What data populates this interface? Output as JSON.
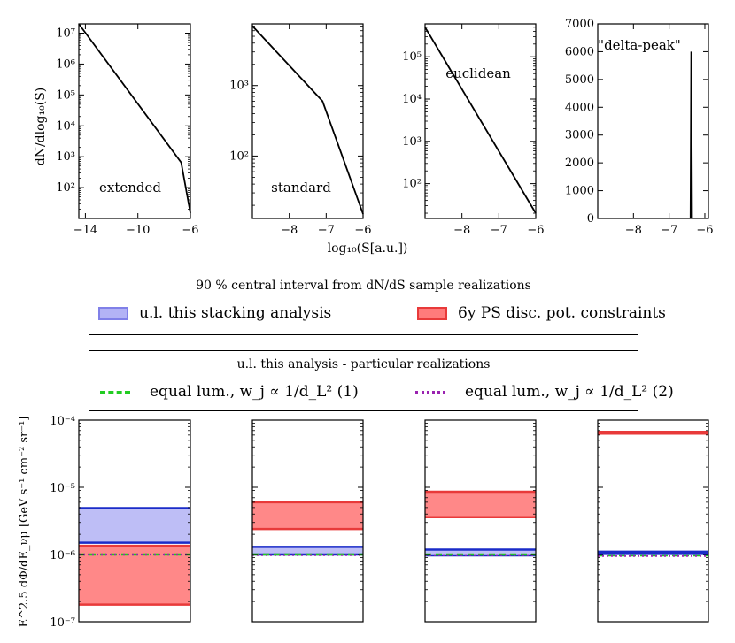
{
  "colors": {
    "ul_fill": "#b3b3f5",
    "ul_edge": "#1a2cc8",
    "ps_fill": "#ff7b7b",
    "ps_edge": "#e83a3a",
    "line_green": "#22cc22",
    "line_purple": "#9a22b0"
  },
  "legend1": {
    "title": "90 % central interval from dN/dS sample realizations",
    "item_ul": "u.l. this stacking analysis",
    "item_ps": "6y PS disc. pot. constraints"
  },
  "legend2": {
    "title": "u.l. this analysis - particular realizations",
    "item1": "equal lum., w_j ∝ 1/d_L² (1)",
    "item2": "equal lum., w_j ∝ 1/d_L² (2)"
  },
  "chart_data": [
    {
      "type": "line",
      "name": "extended",
      "label": "extended",
      "yscale": "log",
      "xlim": [
        -14.5,
        -6
      ],
      "ylim": [
        10,
        20000000
      ],
      "xticks": [
        -14,
        -10,
        -6
      ],
      "xtick_labels": [
        "−14",
        "−10",
        "−6"
      ],
      "yticks": [
        100,
        1000,
        10000,
        100000,
        1000000,
        10000000
      ],
      "ytick_labels": [
        "10²",
        "10³",
        "10⁴",
        "10⁵",
        "10⁶",
        "10⁷"
      ],
      "ylabel": "dN/dlog₁₀(S)",
      "x": [
        -14.5,
        -6.7,
        -6.0
      ],
      "y": [
        20000000,
        650,
        15
      ]
    },
    {
      "type": "line",
      "name": "standard",
      "label": "standard",
      "yscale": "log",
      "xlim": [
        -9,
        -6
      ],
      "ylim": [
        13,
        7500
      ],
      "xticks": [
        -8,
        -7,
        -6
      ],
      "xtick_labels": [
        "−8",
        "−7",
        "−6"
      ],
      "yticks": [
        100,
        1000
      ],
      "ytick_labels": [
        "10²",
        "10³"
      ],
      "x": [
        -9,
        -7.1,
        -6.0
      ],
      "y": [
        7000,
        600,
        15
      ]
    },
    {
      "type": "line",
      "name": "euclidean",
      "label": "euclidean",
      "yscale": "log",
      "xlim": [
        -9,
        -6
      ],
      "ylim": [
        15,
        600000
      ],
      "xticks": [
        -8,
        -7,
        -6
      ],
      "xtick_labels": [
        "−8",
        "−7",
        "−6"
      ],
      "yticks": [
        100,
        1000,
        10000,
        100000
      ],
      "ytick_labels": [
        "10²",
        "10³",
        "10⁴",
        "10⁵"
      ],
      "xlabel": "log₁₀(S[a.u.])",
      "x": [
        -9,
        -6.0
      ],
      "y": [
        500000,
        20
      ]
    },
    {
      "type": "line",
      "name": "delta-peak",
      "label": "\"delta-peak\"",
      "yscale": "linear",
      "xlim": [
        -9,
        -5.9
      ],
      "ylim": [
        0,
        7000
      ],
      "xticks": [
        -8,
        -7,
        -6
      ],
      "xtick_labels": [
        "−8",
        "−7",
        "−6"
      ],
      "yticks": [
        0,
        1000,
        2000,
        3000,
        4000,
        5000,
        6000,
        7000
      ],
      "ytick_labels": [
        "0",
        "1000",
        "2000",
        "3000",
        "4000",
        "5000",
        "6000",
        "7000"
      ],
      "x": [
        -6.4,
        -6.38,
        -6.36
      ],
      "y": [
        0,
        6000,
        0
      ]
    },
    {
      "type": "area",
      "name": "extended-bands",
      "yscale": "log",
      "ylim": [
        1e-07,
        0.0001
      ],
      "yticks": [
        1e-07,
        1e-06,
        1e-05,
        0.0001
      ],
      "ytick_labels": [
        "10⁻⁷",
        "10⁻⁶",
        "10⁻⁵",
        "10⁻⁴"
      ],
      "ylabel": "E^2.5 dΦ/dE_νμ [GeV s⁻¹ cm⁻² sr⁻¹]",
      "ul_band": [
        1.5e-06,
        4.9e-06
      ],
      "ps_band": [
        1.8e-07,
        1.35e-06
      ],
      "line1": 1e-06,
      "line2": 1e-06
    },
    {
      "type": "area",
      "name": "standard-bands",
      "yscale": "log",
      "ylim": [
        1e-07,
        0.0001
      ],
      "ul_band": [
        1e-06,
        1.3e-06
      ],
      "ps_band": [
        2.4e-06,
        6e-06
      ],
      "line1": 1e-06,
      "line2": 9.8e-07
    },
    {
      "type": "area",
      "name": "euclidean-bands",
      "yscale": "log",
      "ylim": [
        1e-07,
        0.0001
      ],
      "ul_band": [
        9.7e-07,
        1.18e-06
      ],
      "ps_band": [
        3.6e-06,
        8.6e-06
      ],
      "line1": 1e-06,
      "line2": 9.8e-07
    },
    {
      "type": "area",
      "name": "delta-peak-bands",
      "yscale": "log",
      "ylim": [
        1e-07,
        0.0001
      ],
      "ul_band": [
        1.05e-06,
        1.1e-06
      ],
      "ps_band": [
        6.3e-05,
        6.7e-05
      ],
      "line1": 9.7e-07,
      "line2": 9.5e-07
    }
  ]
}
